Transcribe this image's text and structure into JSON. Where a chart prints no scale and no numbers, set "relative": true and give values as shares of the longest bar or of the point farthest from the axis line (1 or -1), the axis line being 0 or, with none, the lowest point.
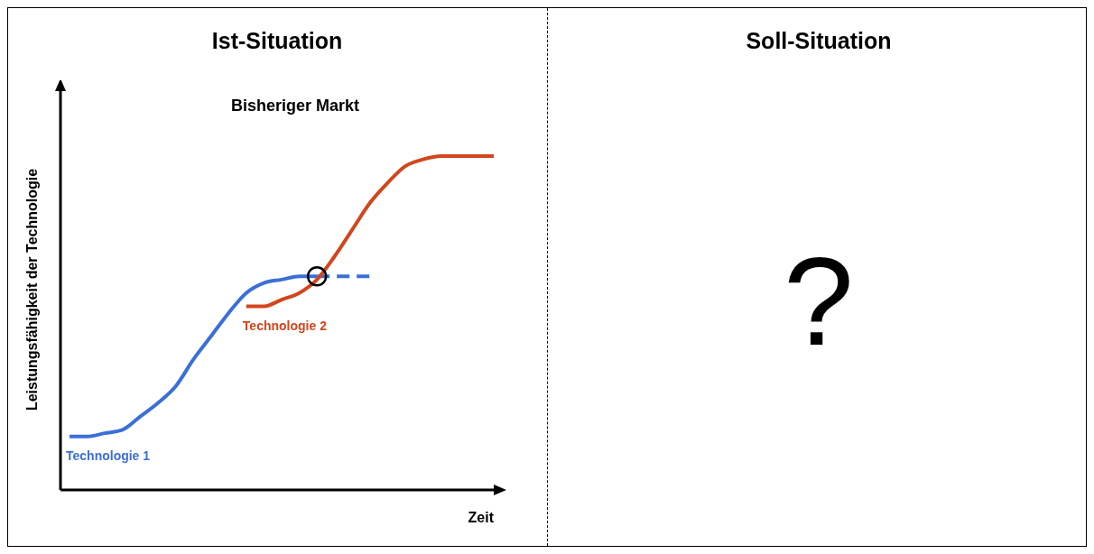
{
  "chart_data": [
    {
      "type": "line",
      "title": "Ist-Situation",
      "subtitle": "Bisheriger Markt",
      "xlabel": "Zeit",
      "ylabel": "Leistungsfähigkeit der Technologie",
      "relative": true,
      "categories": [
        null,
        null,
        null,
        null,
        null,
        null,
        null,
        null,
        null,
        null,
        null,
        null,
        null,
        null,
        null,
        null,
        null,
        null,
        null,
        null,
        null,
        null,
        null,
        null,
        null
      ],
      "series": [
        {
          "name": "Technologie 1",
          "color": "#3b6fd6",
          "values": [
            0.16,
            0.16,
            0.17,
            0.18,
            0.22,
            0.26,
            0.31,
            0.39,
            0.46,
            0.53,
            0.59,
            0.62,
            0.63,
            0.64,
            0.64,
            null,
            null,
            null,
            null,
            null,
            null,
            null,
            null,
            null,
            null
          ]
        },
        {
          "color": "#3b6fd6",
          "line_style": "dashed",
          "values": [
            null,
            null,
            null,
            null,
            null,
            null,
            null,
            null,
            null,
            null,
            null,
            null,
            null,
            null,
            0.64,
            0.64,
            0.64,
            0.64,
            null,
            null,
            null,
            null,
            null,
            null,
            null
          ]
        },
        {
          "name": "Technologie 2",
          "color": "#d2461c",
          "values": [
            null,
            null,
            null,
            null,
            null,
            null,
            null,
            null,
            null,
            null,
            0.55,
            0.55,
            0.57,
            0.59,
            0.63,
            0.7,
            0.78,
            0.86,
            0.92,
            0.97,
            0.99,
            1,
            1,
            1,
            1
          ]
        }
      ]
    },
    {
      "type": "other",
      "title": "Soll-Situation",
      "annotations": [
        "?"
      ]
    }
  ]
}
